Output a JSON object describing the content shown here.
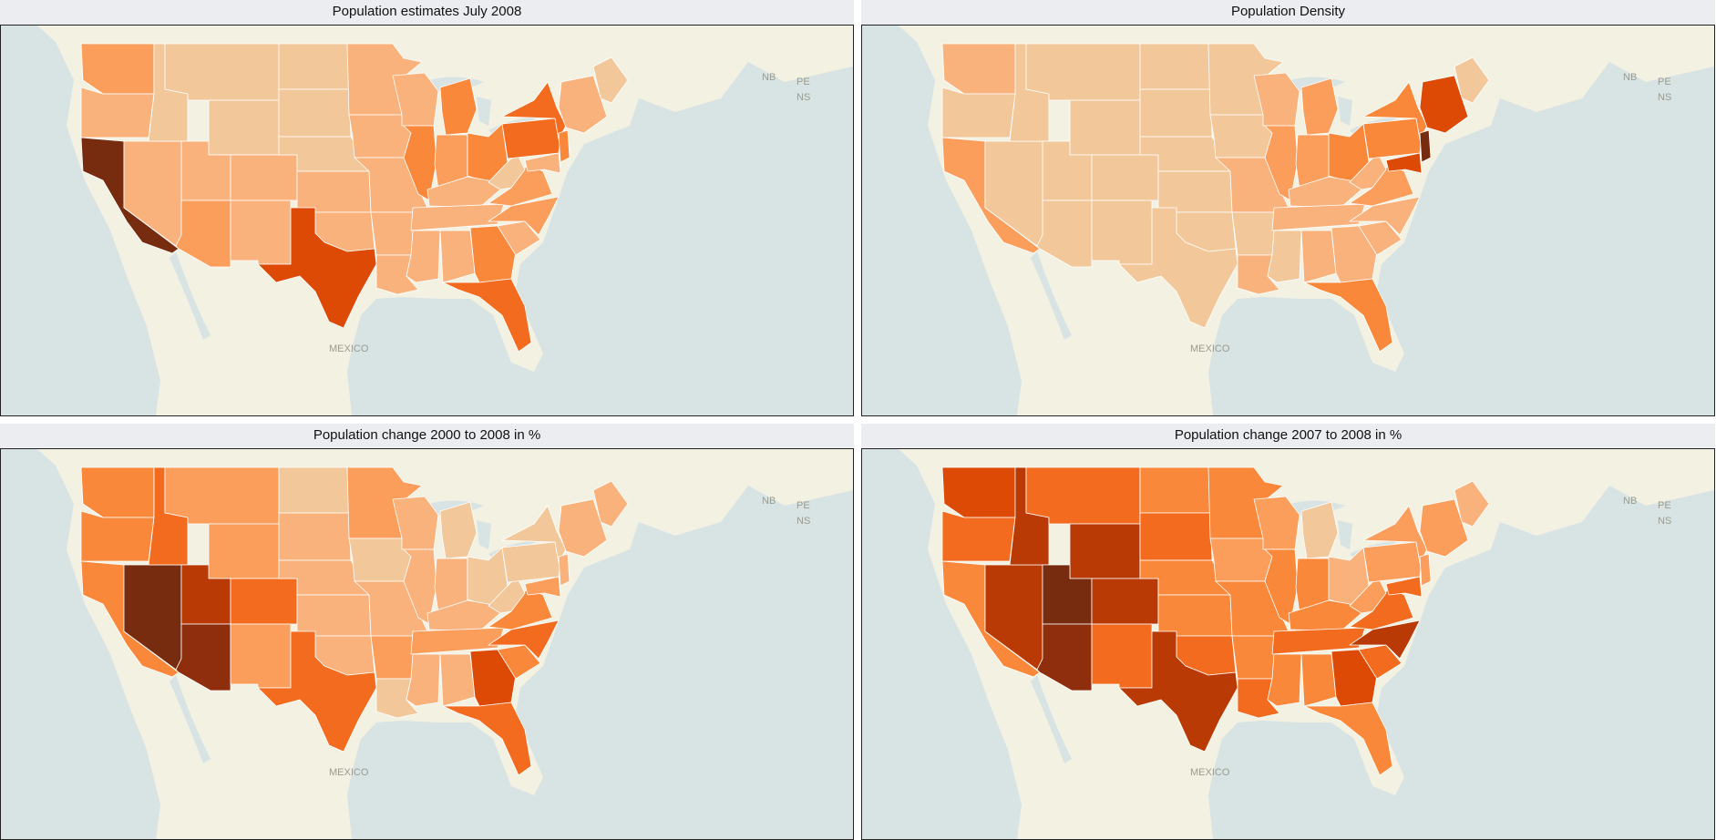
{
  "colors": {
    "water": "#d8e3e4",
    "land": "#f2f1e2",
    "border": "#ffffff",
    "scale": [
      "#f2c79a",
      "#f9b27c",
      "#fb9e5b",
      "#f9883a",
      "#f26b1e",
      "#dc4a06",
      "#b93a04",
      "#8e2e0c",
      "#772c10"
    ]
  },
  "labels": {
    "nb": "NB",
    "pe": "PE",
    "ns": "NS",
    "mexico": "MEXICO"
  },
  "maps": [
    {
      "title": "Population estimates July 2008",
      "shades": {
        "WA": 2,
        "OR": 1,
        "CA": 8,
        "NV": 1,
        "ID": 0,
        "MT": 0,
        "WY": 0,
        "UT": 1,
        "AZ": 2,
        "CO": 1,
        "NM": 1,
        "ND": 0,
        "SD": 0,
        "NE": 0,
        "KS": 1,
        "OK": 1,
        "TX": 5,
        "MN": 1,
        "IA": 1,
        "MO": 1,
        "AR": 1,
        "LA": 1,
        "WI": 1,
        "IL": 3,
        "MI": 3,
        "IN": 2,
        "OH": 3,
        "KY": 1,
        "TN": 1,
        "MS": 1,
        "AL": 1,
        "GA": 3,
        "FL": 4,
        "SC": 1,
        "NC": 2,
        "VA": 2,
        "WV": 0,
        "PA": 4,
        "NY": 4,
        "ME": 0,
        "NE_ENG": 1,
        "NJ": 3,
        "MD": 1
      }
    },
    {
      "title": "Population Density",
      "shades": {
        "WA": 1,
        "OR": 0,
        "CA": 2,
        "NV": 0,
        "ID": 0,
        "MT": 0,
        "WY": 0,
        "UT": 0,
        "AZ": 0,
        "CO": 0,
        "NM": 0,
        "ND": 0,
        "SD": 0,
        "NE": 0,
        "KS": 0,
        "OK": 0,
        "TX": 0,
        "MN": 0,
        "IA": 0,
        "MO": 1,
        "AR": 0,
        "LA": 1,
        "WI": 1,
        "IL": 2,
        "MI": 2,
        "IN": 2,
        "OH": 3,
        "KY": 1,
        "TN": 1,
        "MS": 0,
        "AL": 1,
        "GA": 1,
        "FL": 3,
        "SC": 1,
        "NC": 1,
        "VA": 2,
        "WV": 1,
        "PA": 3,
        "NY": 3,
        "ME": 0,
        "NE_ENG": 5,
        "NJ": 8,
        "MD": 5
      }
    },
    {
      "title": "Population change 2000 to 2008 in %",
      "shades": {
        "WA": 3,
        "OR": 3,
        "CA": 3,
        "NV": 8,
        "ID": 4,
        "MT": 2,
        "WY": 2,
        "UT": 6,
        "AZ": 7,
        "CO": 4,
        "NM": 2,
        "ND": 0,
        "SD": 1,
        "NE": 1,
        "KS": 1,
        "OK": 1,
        "TX": 4,
        "MN": 2,
        "IA": 0,
        "MO": 1,
        "AR": 2,
        "LA": 0,
        "WI": 1,
        "IL": 1,
        "MI": 0,
        "IN": 1,
        "OH": 0,
        "KY": 1,
        "TN": 2,
        "MS": 1,
        "AL": 1,
        "GA": 5,
        "FL": 4,
        "SC": 3,
        "NC": 4,
        "VA": 3,
        "WV": 0,
        "PA": 0,
        "NY": 0,
        "ME": 1,
        "NE_ENG": 1,
        "NJ": 1,
        "MD": 2
      }
    },
    {
      "title": "Population change 2007 to 2008 in %",
      "shades": {
        "WA": 5,
        "OR": 4,
        "CA": 3,
        "NV": 6,
        "ID": 6,
        "MT": 4,
        "WY": 6,
        "UT": 8,
        "AZ": 7,
        "CO": 6,
        "NM": 4,
        "ND": 3,
        "SD": 4,
        "NE": 3,
        "KS": 3,
        "OK": 4,
        "TX": 6,
        "MN": 3,
        "IA": 2,
        "MO": 3,
        "AR": 3,
        "LA": 4,
        "WI": 2,
        "IL": 3,
        "MI": 0,
        "IN": 3,
        "OH": 1,
        "KY": 3,
        "TN": 4,
        "MS": 3,
        "AL": 3,
        "GA": 5,
        "FL": 3,
        "SC": 4,
        "NC": 6,
        "VA": 4,
        "WV": 2,
        "PA": 2,
        "NY": 2,
        "ME": 1,
        "NE_ENG": 2,
        "NJ": 2,
        "MD": 4
      }
    }
  ]
}
